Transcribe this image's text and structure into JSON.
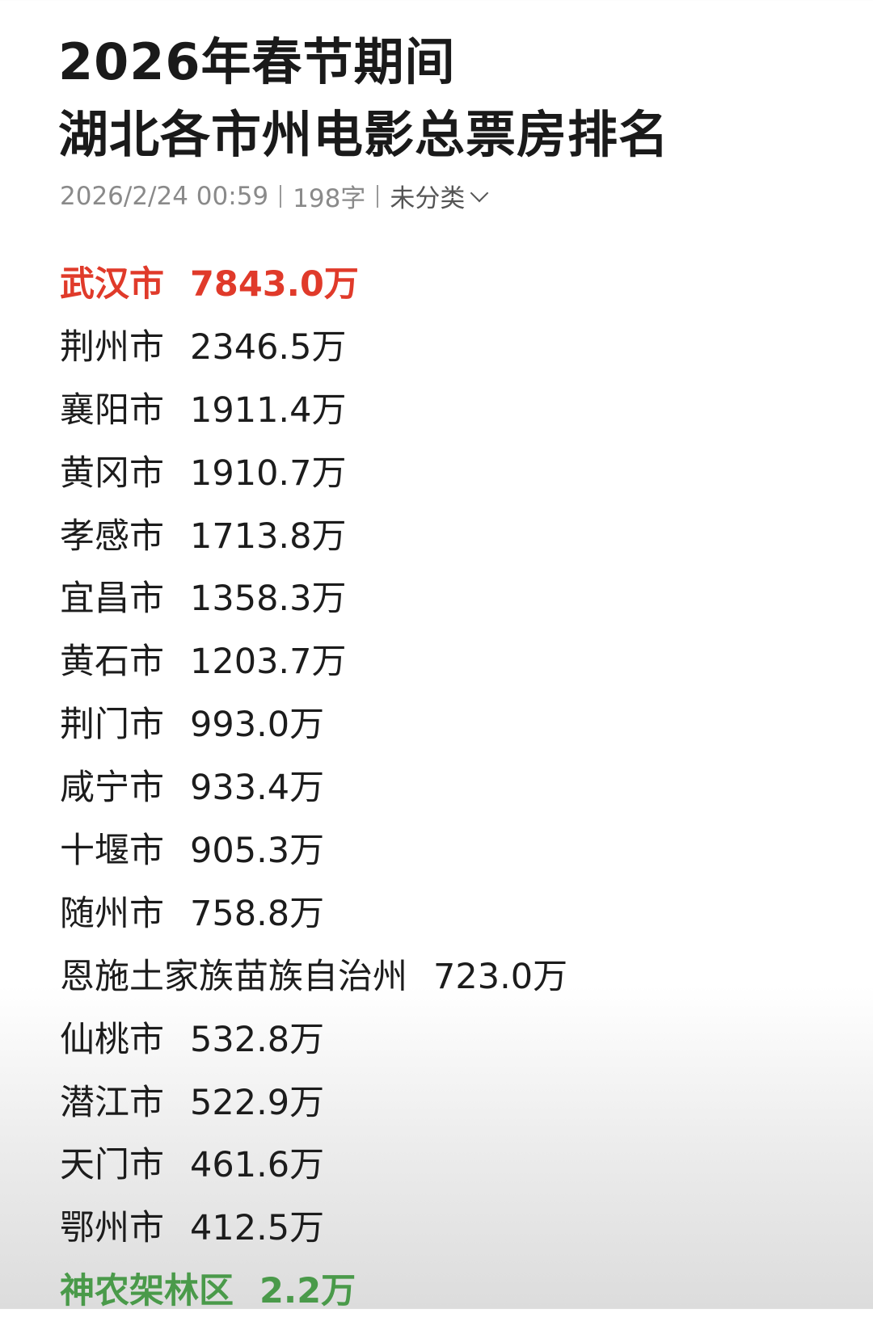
{
  "article": {
    "title_line1": "2026年春节期间",
    "title_line2": "湖北各市州电影总票房排名",
    "date": "2026/2/24 00:59",
    "word_count": "198字",
    "category": "未分类",
    "category_icon": "chevron-down-icon",
    "colors": {
      "top": "#e03a2a",
      "bottom": "#4a9a4a"
    }
  },
  "rankings": [
    {
      "name": "武汉市",
      "value": "7843.0万"
    },
    {
      "name": "荆州市",
      "value": "2346.5万"
    },
    {
      "name": "襄阳市",
      "value": "1911.4万"
    },
    {
      "name": "黄冈市",
      "value": "1910.7万"
    },
    {
      "name": "孝感市",
      "value": "1713.8万"
    },
    {
      "name": "宜昌市",
      "value": "1358.3万"
    },
    {
      "name": "黄石市",
      "value": "1203.7万"
    },
    {
      "name": "荆门市",
      "value": "993.0万"
    },
    {
      "name": "咸宁市",
      "value": "933.4万"
    },
    {
      "name": "十堰市",
      "value": "905.3万"
    },
    {
      "name": "随州市",
      "value": "758.8万"
    },
    {
      "name": "恩施土家族苗族自治州",
      "value": "723.0万"
    },
    {
      "name": "仙桃市",
      "value": "532.8万"
    },
    {
      "name": "潜江市",
      "value": "522.9万"
    },
    {
      "name": "天门市",
      "value": "461.6万"
    },
    {
      "name": "鄂州市",
      "value": "412.5万"
    },
    {
      "name": "神农架林区",
      "value": "2.2万"
    }
  ]
}
